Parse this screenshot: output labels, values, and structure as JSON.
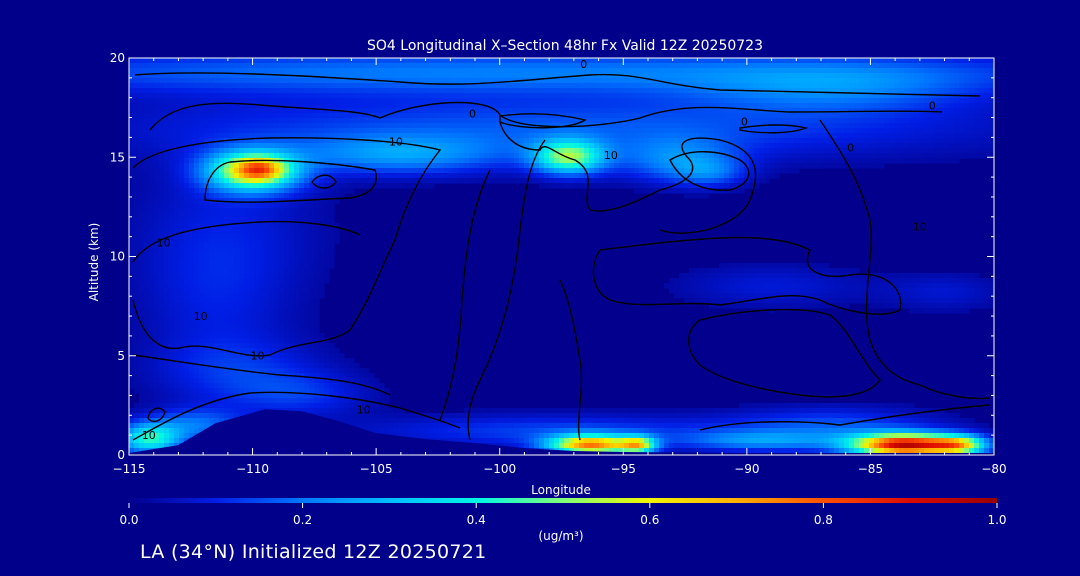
{
  "chart_data": {
    "type": "heatmap",
    "title": "SO4 Longitudinal X–Section 48hr  Fx Valid 12Z 20250723",
    "xlabel": "Longitude",
    "ylabel": "Altitude (km)",
    "xlim": [
      -115,
      -80
    ],
    "ylim": [
      0,
      20
    ],
    "x_ticks": [
      -115,
      -110,
      -105,
      -100,
      -95,
      -90,
      -85,
      -80
    ],
    "x_tick_labels": [
      "−115",
      "−110",
      "−105",
      "−100",
      "−95",
      "−90",
      "−85",
      "−80"
    ],
    "y_ticks": [
      0,
      5,
      10,
      15,
      20
    ],
    "y_tick_labels": [
      "0",
      "5",
      "10",
      "15",
      "20"
    ],
    "colorbar": {
      "min": 0.0,
      "max": 1.0,
      "ticks": [
        0.0,
        0.2,
        0.4,
        0.6,
        0.8,
        1.0
      ],
      "tick_labels": [
        "0.0",
        "0.2",
        "0.4",
        "0.6",
        "0.8",
        "1.0"
      ],
      "units": "(ug/m³)"
    },
    "field_blobs": [
      {
        "x": -110,
        "y": 14.3,
        "sx": 1.3,
        "sy": 0.7,
        "value": 0.55
      },
      {
        "x": -109.7,
        "y": 14.4,
        "sx": 0.7,
        "sy": 0.4,
        "value": 0.25
      },
      {
        "x": -104,
        "y": 15.1,
        "sx": 3.0,
        "sy": 0.7,
        "value": 0.2
      },
      {
        "x": -97.2,
        "y": 15.0,
        "sx": 1.0,
        "sy": 0.6,
        "value": 0.45
      },
      {
        "x": -92.8,
        "y": 14.8,
        "sx": 1.7,
        "sy": 0.8,
        "value": 0.18
      },
      {
        "x": -91.5,
        "y": 14.2,
        "sx": 1.0,
        "sy": 0.5,
        "value": 0.12
      },
      {
        "x": -97.5,
        "y": 16.5,
        "sx": 12,
        "sy": 1.2,
        "value": 0.16
      },
      {
        "x": -100,
        "y": 19.3,
        "sx": 18,
        "sy": 0.8,
        "value": 0.2
      },
      {
        "x": -86.5,
        "y": 18.4,
        "sx": 4,
        "sy": 0.9,
        "value": 0.14
      },
      {
        "x": -111,
        "y": 11.5,
        "sx": 2.8,
        "sy": 2.8,
        "value": 0.08
      },
      {
        "x": -111.5,
        "y": 7.5,
        "sx": 2.2,
        "sy": 2.6,
        "value": 0.07
      },
      {
        "x": -110.5,
        "y": 4.2,
        "sx": 2.5,
        "sy": 1.2,
        "value": 0.1
      },
      {
        "x": -108,
        "y": 3.0,
        "sx": 2.0,
        "sy": 0.8,
        "value": 0.1
      },
      {
        "x": -89,
        "y": 8.5,
        "sx": 2.8,
        "sy": 0.8,
        "value": 0.08
      },
      {
        "x": -82,
        "y": 8.2,
        "sx": 1.8,
        "sy": 0.7,
        "value": 0.07
      },
      {
        "x": -114.2,
        "y": 0.8,
        "sx": 0.9,
        "sy": 0.55,
        "value": 0.4
      },
      {
        "x": -112.3,
        "y": 1.5,
        "sx": 1.4,
        "sy": 0.6,
        "value": 0.18
      },
      {
        "x": -97.8,
        "y": 1.2,
        "sx": 5.5,
        "sy": 0.6,
        "value": 0.14
      },
      {
        "x": -96.3,
        "y": 0.5,
        "sx": 1.2,
        "sy": 0.35,
        "value": 0.7
      },
      {
        "x": -94.4,
        "y": 0.5,
        "sx": 0.5,
        "sy": 0.3,
        "value": 0.45
      },
      {
        "x": -89.5,
        "y": 0.7,
        "sx": 2.2,
        "sy": 0.35,
        "value": 0.18
      },
      {
        "x": -83.6,
        "y": 0.5,
        "sx": 1.5,
        "sy": 0.4,
        "value": 0.9
      },
      {
        "x": -81.4,
        "y": 0.5,
        "sx": 0.8,
        "sy": 0.35,
        "value": 0.45
      },
      {
        "x": -86.5,
        "y": 1.4,
        "sx": 3.0,
        "sy": 0.7,
        "value": 0.15
      }
    ],
    "terrain_height_km": [
      [
        -115,
        0.1
      ],
      [
        -113,
        0.5
      ],
      [
        -111.5,
        1.6
      ],
      [
        -109.5,
        2.3
      ],
      [
        -108,
        2.2
      ],
      [
        -106.5,
        1.7
      ],
      [
        -105,
        1.1
      ],
      [
        -103,
        0.8
      ],
      [
        -101,
        0.6
      ],
      [
        -99,
        0.35
      ],
      [
        -97,
        0.2
      ],
      [
        -95,
        0.15
      ],
      [
        -90,
        0.1
      ],
      [
        -85,
        0.1
      ],
      [
        -80,
        0.1
      ]
    ],
    "contour_labels": [
      {
        "x": -104.2,
        "y": 15.6,
        "text": "10"
      },
      {
        "x": -113.6,
        "y": 10.5,
        "text": "10"
      },
      {
        "x": -112.1,
        "y": 6.8,
        "text": "10"
      },
      {
        "x": -109.8,
        "y": 4.8,
        "text": "10"
      },
      {
        "x": -105.5,
        "y": 2.1,
        "text": "10"
      },
      {
        "x": -114.2,
        "y": 0.8,
        "text": "10"
      },
      {
        "x": -95.5,
        "y": 14.9,
        "text": "10"
      },
      {
        "x": -83.0,
        "y": 11.3,
        "text": "10"
      },
      {
        "x": -96.6,
        "y": 19.5,
        "text": "0"
      },
      {
        "x": -101.1,
        "y": 17.0,
        "text": "0"
      },
      {
        "x": -90.1,
        "y": 16.6,
        "text": "0"
      },
      {
        "x": -85.8,
        "y": 15.3,
        "text": "0"
      },
      {
        "x": -82.5,
        "y": 17.4,
        "text": "0"
      }
    ]
  },
  "footer": {
    "location_text": "LA (34°N) Initialized 12Z 20250721"
  }
}
